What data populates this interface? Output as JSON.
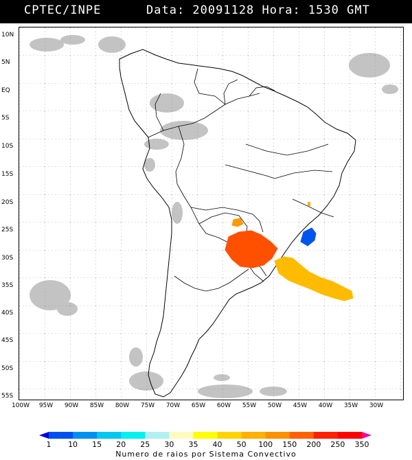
{
  "header": {
    "source": "CPTEC/INPE",
    "datetime": "Data: 20091128 Hora: 1530 GMT"
  },
  "axes": {
    "lat_labels": [
      "10N",
      "5N",
      "EQ",
      "5S",
      "10S",
      "15S",
      "20S",
      "25S",
      "30S",
      "35S",
      "40S",
      "45S",
      "50S",
      "55S"
    ],
    "lon_labels": [
      "100W",
      "95W",
      "90W",
      "85W",
      "80W",
      "75W",
      "70W",
      "65W",
      "60W",
      "55W",
      "50W",
      "45W",
      "40W",
      "35W",
      "30W"
    ]
  },
  "legend": {
    "caption": "Numero de raios por Sistema Convectivo",
    "values": [
      "1",
      "10",
      "15",
      "20",
      "25",
      "30",
      "35",
      "40",
      "50",
      "100",
      "150",
      "200",
      "250",
      "350"
    ],
    "colors": [
      "#0000dd",
      "#0050f0",
      "#0090f0",
      "#00c8f0",
      "#00f0f0",
      "#b0f0f0",
      "#fffac0",
      "#ffff00",
      "#ffd400",
      "#ffb000",
      "#ff9000",
      "#ff6000",
      "#ff2000",
      "#ff0000",
      "#ff0090"
    ]
  },
  "systems": [
    {
      "name": "southern-brazil-uruguay-system",
      "color": "#ff5000"
    },
    {
      "name": "atlantic-offshore-system",
      "color": "#ffbb00"
    },
    {
      "name": "sao-paulo-coast-system",
      "color": "#0055ee"
    },
    {
      "name": "paraguay-small-system",
      "color": "#ff9a00"
    },
    {
      "name": "minas-small-system",
      "color": "#ffb000"
    }
  ]
}
